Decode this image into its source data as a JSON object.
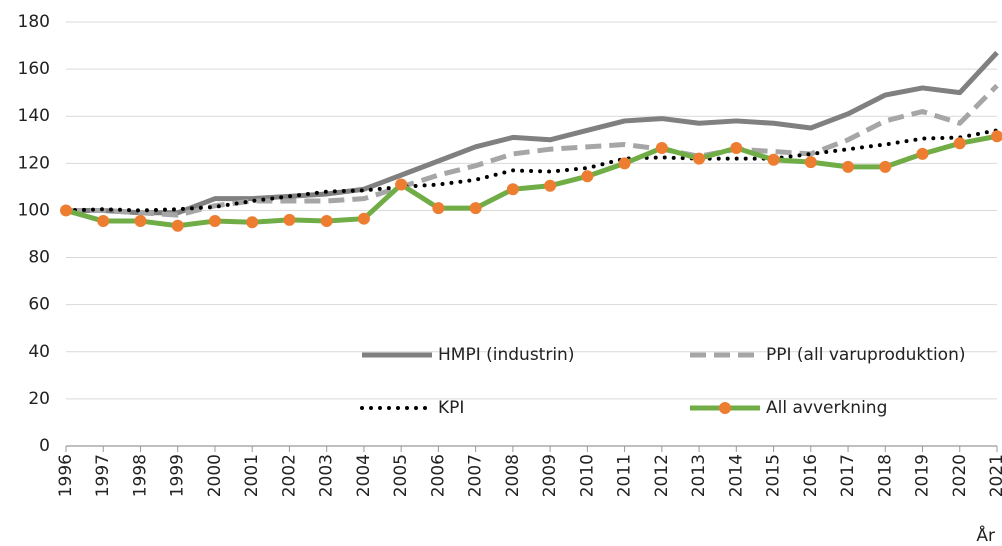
{
  "chart_data": {
    "type": "line",
    "xlabel": "År",
    "categories": [
      "1996",
      "1997",
      "1998",
      "1999",
      "2000",
      "2001",
      "2002",
      "2003",
      "2004",
      "2005",
      "2006",
      "2007",
      "2008",
      "2009",
      "2010",
      "2011",
      "2012",
      "2013",
      "2014",
      "2015",
      "2016",
      "2017",
      "2018",
      "2019",
      "2020",
      "2021"
    ],
    "series": [
      {
        "name": "HMPI (industrin)",
        "color": "#808080",
        "style": "solid",
        "values": [
          100,
          100,
          99,
          99,
          105,
          105,
          106,
          107,
          109,
          115,
          121,
          127,
          131,
          130,
          134,
          138,
          139,
          137,
          138,
          137,
          135,
          141,
          149,
          152,
          150,
          167
        ]
      },
      {
        "name": "PPI (all varuproduktion)",
        "color": "#a6a6a6",
        "style": "dashed",
        "values": [
          100,
          100,
          99,
          98,
          102,
          104,
          104,
          104,
          105,
          110,
          115,
          119,
          124,
          126,
          127,
          128,
          126,
          123,
          126,
          125,
          124,
          130,
          138,
          142,
          137,
          153
        ]
      },
      {
        "name": "KPI",
        "color": "#000000",
        "style": "dotted",
        "values": [
          100,
          100.5,
          100,
          100.5,
          101.5,
          104,
          106,
          108,
          108.5,
          110,
          111,
          113,
          117,
          116.5,
          118,
          122,
          122.5,
          122,
          122,
          122,
          124,
          126,
          128,
          130.5,
          131,
          134
        ]
      },
      {
        "name": "All avverkning",
        "color": "#70ad47",
        "style": "solid",
        "marker": "#ed7d31",
        "values": [
          100,
          95.5,
          95.5,
          93.5,
          95.5,
          95,
          96,
          95.5,
          96.5,
          111,
          101,
          101,
          109,
          110.5,
          114.5,
          120,
          126.5,
          122,
          126.5,
          121.5,
          120.5,
          118.5,
          118.5,
          124,
          128.5,
          131.5
        ]
      }
    ],
    "ylim": [
      0,
      180
    ],
    "yticks": [
      0,
      20,
      40,
      60,
      80,
      100,
      120,
      140,
      160,
      180
    ],
    "grid": true,
    "legend": "lower right"
  }
}
